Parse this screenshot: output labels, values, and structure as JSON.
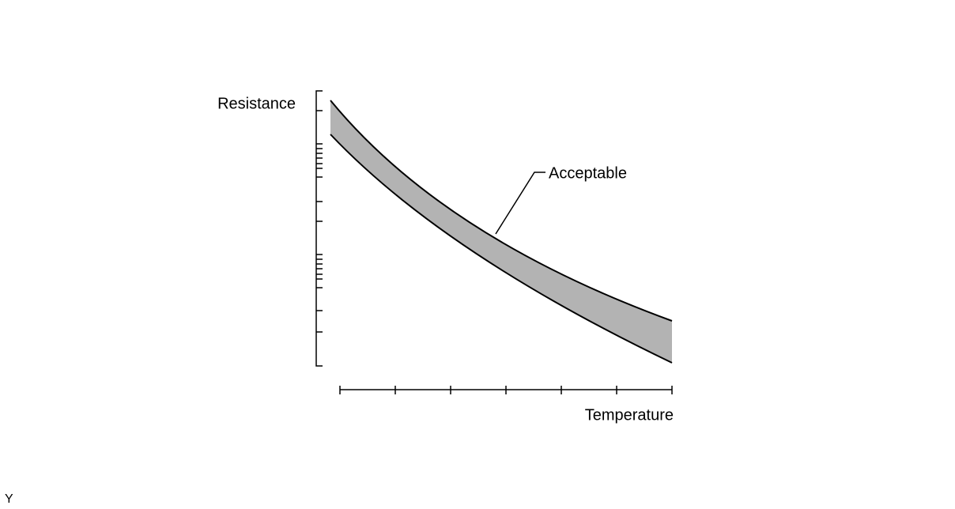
{
  "labels": {
    "y_axis": "Resistance",
    "x_axis": "Temperature",
    "band": "Acceptable"
  },
  "figure_code": "Y"
}
